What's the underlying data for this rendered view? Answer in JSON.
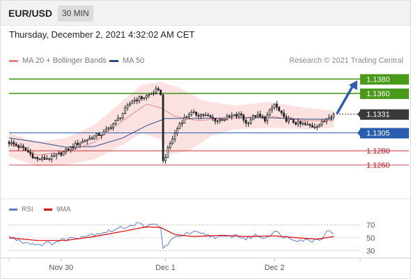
{
  "header": {
    "symbol": "EUR/USD",
    "timeframe": "30 MIN"
  },
  "timestamp": "Thursday, December 2, 2021 4:32:02 AM CET",
  "legend": {
    "ma20": {
      "label": "MA 20 + Bollinger Bands",
      "color": "#f08080"
    },
    "ma50": {
      "label": "MA 50",
      "color": "#2c4a8c"
    }
  },
  "credit": "Research © 2021 Trading Central",
  "rsi_legend": {
    "rsi": {
      "label": "RSI",
      "color": "#5b7bd5"
    },
    "ma9": {
      "label": "9MA",
      "color": "#dd0000"
    }
  },
  "colors": {
    "resistance": "#4a9a1a",
    "pivot": "#2a5db0",
    "support": "#c0151d",
    "current": "#333333",
    "arrow": "#2a5db0",
    "candle": "#222222"
  },
  "chart_data": [
    {
      "type": "candlestick",
      "ylim": [
        1.1215,
        1.1392
      ],
      "x_tick_labels": [
        "Nov 30",
        "Dec 1",
        "Dec 2"
      ],
      "levels": [
        {
          "kind": "resistance",
          "value": 1.138,
          "label": "1.1380"
        },
        {
          "kind": "resistance",
          "value": 1.136,
          "label": "1.1360"
        },
        {
          "kind": "current",
          "value": 1.1331,
          "label": "1.1331"
        },
        {
          "kind": "pivot",
          "value": 1.1305,
          "label": "1.1305"
        },
        {
          "kind": "support",
          "value": 1.128,
          "label": "1.1280"
        },
        {
          "kind": "support",
          "value": 1.126,
          "label": "1.1260"
        }
      ],
      "price_path": [
        {
          "t": 0,
          "p": 1.1292
        },
        {
          "t": 6,
          "p": 1.1283
        },
        {
          "t": 12,
          "p": 1.1268
        },
        {
          "t": 18,
          "p": 1.127
        },
        {
          "t": 24,
          "p": 1.128
        },
        {
          "t": 30,
          "p": 1.1292
        },
        {
          "t": 36,
          "p": 1.13
        },
        {
          "t": 40,
          "p": 1.1305
        },
        {
          "t": 46,
          "p": 1.1324
        },
        {
          "t": 52,
          "p": 1.135
        },
        {
          "t": 58,
          "p": 1.1356
        },
        {
          "t": 62,
          "p": 1.1364
        },
        {
          "t": 64,
          "p": 1.136
        },
        {
          "t": 65,
          "p": 1.1265
        },
        {
          "t": 68,
          "p": 1.129
        },
        {
          "t": 72,
          "p": 1.1318
        },
        {
          "t": 76,
          "p": 1.1332
        },
        {
          "t": 82,
          "p": 1.133
        },
        {
          "t": 88,
          "p": 1.1322
        },
        {
          "t": 94,
          "p": 1.1328
        },
        {
          "t": 98,
          "p": 1.133
        },
        {
          "t": 100,
          "p": 1.1318
        },
        {
          "t": 104,
          "p": 1.133
        },
        {
          "t": 108,
          "p": 1.1324
        },
        {
          "t": 112,
          "p": 1.1345
        },
        {
          "t": 116,
          "p": 1.1325
        },
        {
          "t": 122,
          "p": 1.1318
        },
        {
          "t": 128,
          "p": 1.1314
        },
        {
          "t": 132,
          "p": 1.1318
        },
        {
          "t": 135,
          "p": 1.1329
        },
        {
          "t": 137,
          "p": 1.1331
        }
      ],
      "ma20": [
        {
          "t": 0,
          "p": 1.129
        },
        {
          "t": 12,
          "p": 1.1274
        },
        {
          "t": 24,
          "p": 1.1278
        },
        {
          "t": 36,
          "p": 1.1292
        },
        {
          "t": 48,
          "p": 1.1322
        },
        {
          "t": 58,
          "p": 1.1345
        },
        {
          "t": 64,
          "p": 1.134
        },
        {
          "t": 70,
          "p": 1.1328
        },
        {
          "t": 80,
          "p": 1.1322
        },
        {
          "t": 95,
          "p": 1.1326
        },
        {
          "t": 110,
          "p": 1.1328
        },
        {
          "t": 125,
          "p": 1.1322
        },
        {
          "t": 137,
          "p": 1.1322
        }
      ],
      "ma50": [
        {
          "t": 0,
          "p": 1.1298
        },
        {
          "t": 12,
          "p": 1.1292
        },
        {
          "t": 24,
          "p": 1.1285
        },
        {
          "t": 36,
          "p": 1.1286
        },
        {
          "t": 48,
          "p": 1.1298
        },
        {
          "t": 58,
          "p": 1.1315
        },
        {
          "t": 66,
          "p": 1.1325
        },
        {
          "t": 80,
          "p": 1.1325
        },
        {
          "t": 95,
          "p": 1.1326
        },
        {
          "t": 110,
          "p": 1.1326
        },
        {
          "t": 125,
          "p": 1.1324
        },
        {
          "t": 137,
          "p": 1.1324
        }
      ],
      "bollinger_upper": [
        {
          "t": 0,
          "p": 1.1305
        },
        {
          "t": 12,
          "p": 1.1292
        },
        {
          "t": 24,
          "p": 1.1298
        },
        {
          "t": 36,
          "p": 1.1316
        },
        {
          "t": 48,
          "p": 1.135
        },
        {
          "t": 56,
          "p": 1.1372
        },
        {
          "t": 64,
          "p": 1.1376
        },
        {
          "t": 72,
          "p": 1.1368
        },
        {
          "t": 82,
          "p": 1.135
        },
        {
          "t": 95,
          "p": 1.1343
        },
        {
          "t": 110,
          "p": 1.1348
        },
        {
          "t": 125,
          "p": 1.134
        },
        {
          "t": 137,
          "p": 1.1336
        }
      ],
      "bollinger_lower": [
        {
          "t": 0,
          "p": 1.1272
        },
        {
          "t": 12,
          "p": 1.1258
        },
        {
          "t": 24,
          "p": 1.126
        },
        {
          "t": 36,
          "p": 1.1268
        },
        {
          "t": 48,
          "p": 1.1288
        },
        {
          "t": 56,
          "p": 1.1305
        },
        {
          "t": 64,
          "p": 1.1296
        },
        {
          "t": 68,
          "p": 1.1275
        },
        {
          "t": 76,
          "p": 1.128
        },
        {
          "t": 85,
          "p": 1.13
        },
        {
          "t": 95,
          "p": 1.131
        },
        {
          "t": 110,
          "p": 1.1312
        },
        {
          "t": 125,
          "p": 1.131
        },
        {
          "t": 137,
          "p": 1.1312
        }
      ],
      "projection": {
        "from": {
          "t": 138,
          "p": 1.1331
        },
        "to": {
          "t": 152,
          "p": 1.138
        }
      }
    },
    {
      "type": "line",
      "name": "RSI",
      "ylim": [
        20,
        80
      ],
      "y_tick_labels": [
        "70",
        "50",
        "30"
      ],
      "series": [
        {
          "name": "RSI",
          "values": [
            {
              "t": 0,
              "v": 52
            },
            {
              "t": 6,
              "v": 44
            },
            {
              "t": 12,
              "v": 40
            },
            {
              "t": 18,
              "v": 42
            },
            {
              "t": 24,
              "v": 48
            },
            {
              "t": 30,
              "v": 52
            },
            {
              "t": 36,
              "v": 56
            },
            {
              "t": 42,
              "v": 60
            },
            {
              "t": 48,
              "v": 66
            },
            {
              "t": 54,
              "v": 72
            },
            {
              "t": 58,
              "v": 68
            },
            {
              "t": 62,
              "v": 70
            },
            {
              "t": 64,
              "v": 66
            },
            {
              "t": 65,
              "v": 33
            },
            {
              "t": 68,
              "v": 45
            },
            {
              "t": 72,
              "v": 54
            },
            {
              "t": 78,
              "v": 58
            },
            {
              "t": 84,
              "v": 54
            },
            {
              "t": 90,
              "v": 50
            },
            {
              "t": 96,
              "v": 54
            },
            {
              "t": 100,
              "v": 48
            },
            {
              "t": 104,
              "v": 54
            },
            {
              "t": 108,
              "v": 50
            },
            {
              "t": 112,
              "v": 60
            },
            {
              "t": 116,
              "v": 52
            },
            {
              "t": 122,
              "v": 47
            },
            {
              "t": 128,
              "v": 46
            },
            {
              "t": 132,
              "v": 50
            },
            {
              "t": 135,
              "v": 62
            },
            {
              "t": 137,
              "v": 58
            }
          ]
        },
        {
          "name": "9MA",
          "values": [
            {
              "t": 0,
              "v": 50
            },
            {
              "t": 12,
              "v": 46
            },
            {
              "t": 24,
              "v": 46
            },
            {
              "t": 36,
              "v": 52
            },
            {
              "t": 48,
              "v": 60
            },
            {
              "t": 58,
              "v": 67
            },
            {
              "t": 64,
              "v": 66
            },
            {
              "t": 70,
              "v": 55
            },
            {
              "t": 78,
              "v": 52
            },
            {
              "t": 90,
              "v": 54
            },
            {
              "t": 100,
              "v": 52
            },
            {
              "t": 112,
              "v": 53
            },
            {
              "t": 122,
              "v": 50
            },
            {
              "t": 130,
              "v": 48
            },
            {
              "t": 137,
              "v": 52
            }
          ]
        }
      ]
    }
  ]
}
